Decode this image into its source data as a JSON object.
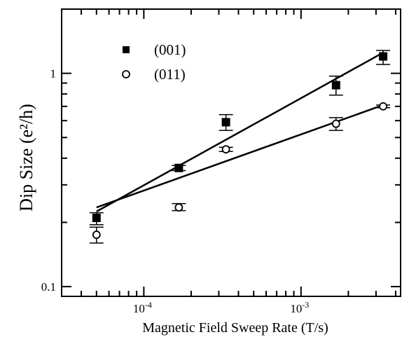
{
  "chart_data": {
    "type": "scatter",
    "xlabel": "Magnetic Field Sweep Rate (T/s)",
    "ylabel": "Dip Size (e²/h)",
    "x_scale": "log",
    "y_scale": "log",
    "xlim": [
      3e-05,
      0.0043
    ],
    "ylim": [
      0.09,
      2.0
    ],
    "x_tick_labels": [
      {
        "value": 0.0001,
        "base": "10",
        "exp": "-4"
      },
      {
        "value": 0.001,
        "base": "10",
        "exp": "-3"
      }
    ],
    "y_tick_labels": [
      {
        "value": 1,
        "text": "1"
      },
      {
        "value": 0.1,
        "text": "0.1"
      }
    ],
    "grid": false,
    "legend_position": "top-left",
    "series": [
      {
        "name": "(001)",
        "marker": "filled-square",
        "points": [
          {
            "x": 5e-05,
            "y": 0.21,
            "err_lo": 0.195,
            "err_hi": 0.222
          },
          {
            "x": 0.000167,
            "y": 0.36,
            "err_lo": 0.35,
            "err_hi": 0.37
          },
          {
            "x": 0.000333,
            "y": 0.59,
            "err_lo": 0.54,
            "err_hi": 0.64
          },
          {
            "x": 0.00167,
            "y": 0.88,
            "err_lo": 0.79,
            "err_hi": 0.97
          },
          {
            "x": 0.00333,
            "y": 1.2,
            "err_lo": 1.1,
            "err_hi": 1.28
          }
        ],
        "fit": {
          "x": [
            5e-05,
            0.00333
          ],
          "y": [
            0.225,
            1.25
          ]
        }
      },
      {
        "name": "(011)",
        "marker": "open-circle",
        "points": [
          {
            "x": 5e-05,
            "y": 0.175,
            "err_lo": 0.16,
            "err_hi": 0.19
          },
          {
            "x": 0.000167,
            "y": 0.235,
            "err_lo": 0.227,
            "err_hi": 0.245
          },
          {
            "x": 0.000333,
            "y": 0.44,
            "err_lo": 0.43,
            "err_hi": 0.45
          },
          {
            "x": 0.00167,
            "y": 0.58,
            "err_lo": 0.54,
            "err_hi": 0.62
          },
          {
            "x": 0.00333,
            "y": 0.7,
            "err_lo": 0.69,
            "err_hi": 0.71
          }
        ],
        "fit": {
          "x": [
            5e-05,
            0.00333
          ],
          "y": [
            0.235,
            0.71
          ]
        }
      }
    ]
  }
}
